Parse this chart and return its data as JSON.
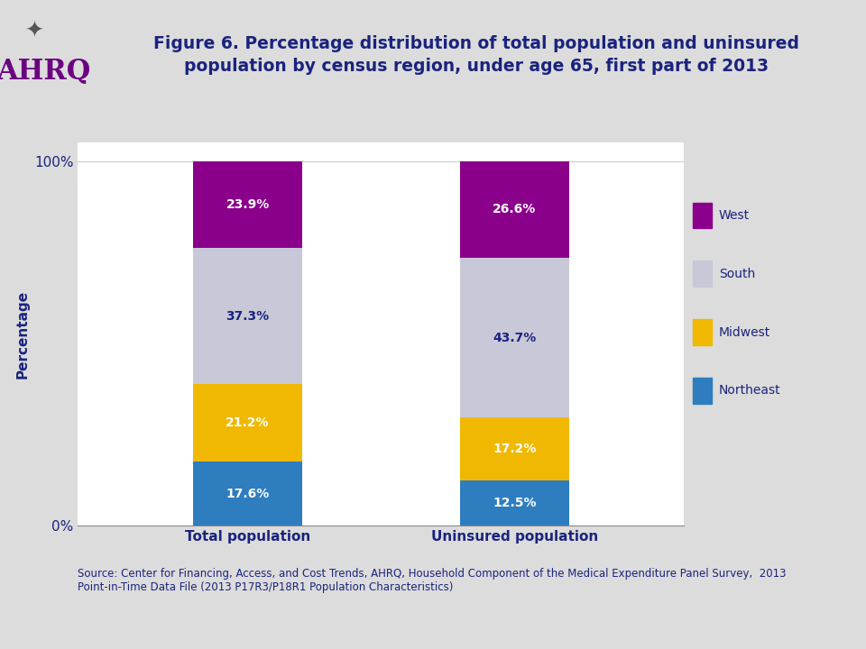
{
  "title": "Figure 6. Percentage distribution of total population and uninsured\npopulation by census region, under age 65, first part of 2013",
  "title_color": "#1a237e",
  "title_fontsize": 13.5,
  "categories": [
    "Total population",
    "Uninsured population"
  ],
  "segments": [
    "Northeast",
    "Midwest",
    "South",
    "West"
  ],
  "values": {
    "Total population": [
      17.6,
      21.2,
      37.3,
      23.9
    ],
    "Uninsured population": [
      12.5,
      17.2,
      43.7,
      26.6
    ]
  },
  "colors": [
    "#2e7dbf",
    "#f0b800",
    "#c8c8d8",
    "#8b008b"
  ],
  "label_colors": [
    "white",
    "white",
    "#1a237e",
    "white"
  ],
  "ylabel": "Percentage",
  "ylabel_color": "#1a237e",
  "ylabel_fontsize": 11,
  "xlabel_fontsize": 11,
  "xlabel_color": "#1a237e",
  "label_fontsize": 10,
  "ytick_labels_show": [
    "0%",
    "100%"
  ],
  "ytick_positions": [
    0,
    100
  ],
  "bar_width": 0.18,
  "x_positions": [
    0.28,
    0.72
  ],
  "xlim": [
    0,
    1
  ],
  "ylim": [
    0,
    105
  ],
  "legend_segments": [
    "West",
    "South",
    "Midwest",
    "Northeast"
  ],
  "legend_colors": [
    "#8b008b",
    "#c8c8d8",
    "#f0b800",
    "#2e7dbf"
  ],
  "legend_fontsize": 10,
  "legend_color": "#1a237e",
  "source_text": "Source: Center for Financing, Access, and Cost Trends, AHRQ, Household Component of the Medical Expenditure Panel Survey,  2013\nPoint-in-Time Data File (2013 P17R3/P18R1 Population Characteristics)",
  "source_fontsize": 8.5,
  "source_color": "#1a237e",
  "bg_color": "#dcdcdc",
  "header_color": "#c8c8c8",
  "plot_bg_color": "#ffffff",
  "separator_color": "#aaaaaa",
  "grid_color": "#cccccc",
  "spine_color": "#888888"
}
